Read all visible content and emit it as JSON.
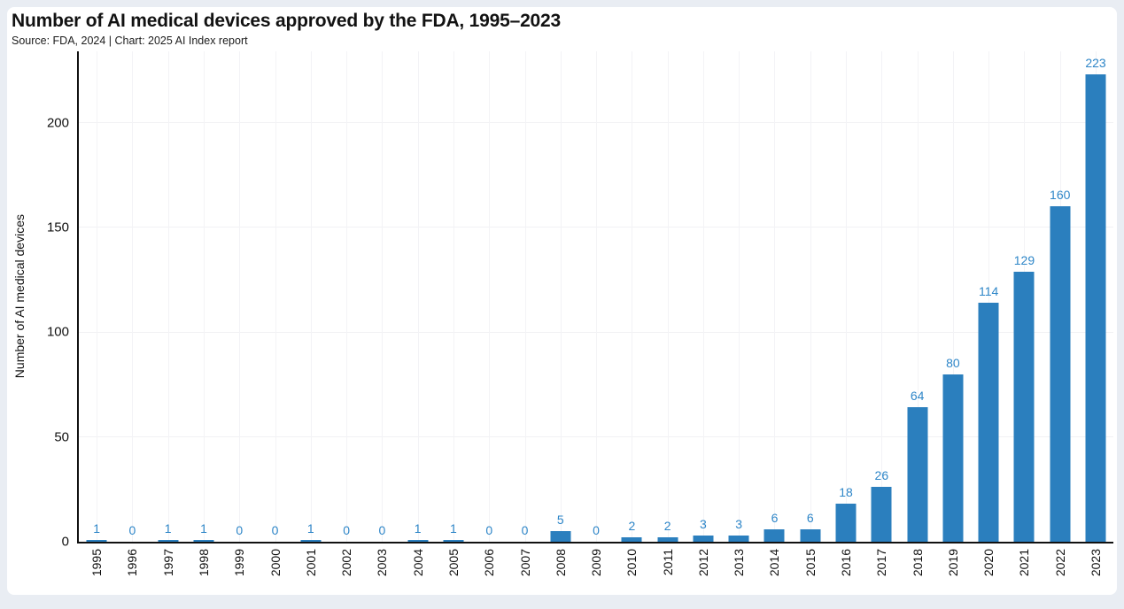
{
  "chart_data": {
    "type": "bar",
    "title": "Number of AI medical devices approved by the FDA, 1995–2023",
    "subtitle": "Source: FDA, 2024 | Chart: 2025 AI Index report",
    "xlabel": "",
    "ylabel": "Number of AI medical devices",
    "categories": [
      "1995",
      "1996",
      "1997",
      "1998",
      "1999",
      "2000",
      "2001",
      "2002",
      "2003",
      "2004",
      "2005",
      "2006",
      "2007",
      "2008",
      "2009",
      "2010",
      "2011",
      "2012",
      "2013",
      "2014",
      "2015",
      "2016",
      "2017",
      "2018",
      "2019",
      "2020",
      "2021",
      "2022",
      "2023"
    ],
    "values": [
      1,
      0,
      1,
      1,
      0,
      0,
      1,
      0,
      0,
      1,
      1,
      0,
      0,
      5,
      0,
      2,
      2,
      3,
      3,
      6,
      6,
      18,
      26,
      64,
      80,
      114,
      129,
      160,
      223
    ],
    "yticks": [
      0,
      50,
      100,
      150,
      200
    ],
    "ylim": [
      0,
      234
    ],
    "grid": "faint horizontal and vertical gridlines",
    "legend": "none",
    "bar_color": "#2b7fbe",
    "value_label_color": "#2e86c8",
    "axis_color": "#111111",
    "card_background": "#ffffff",
    "page_background": "#e9edf3"
  }
}
